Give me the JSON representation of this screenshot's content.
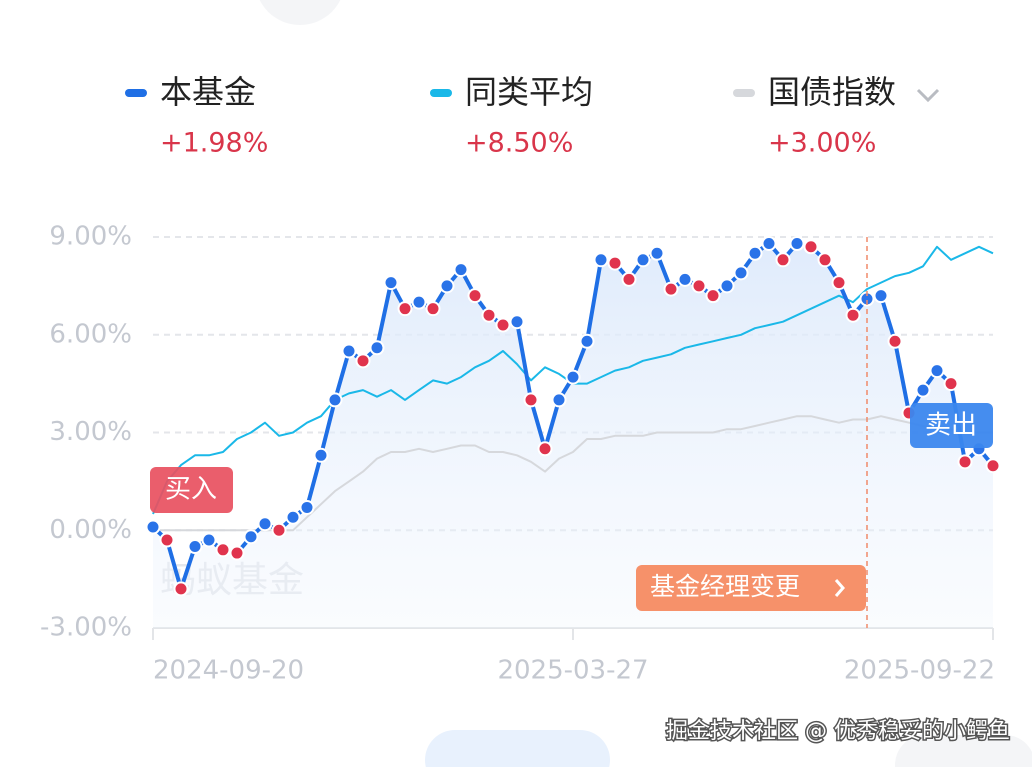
{
  "chart_data": {
    "type": "line",
    "categories": [
      "2024-09-20",
      null,
      null,
      null,
      null,
      null,
      null,
      null,
      null,
      null,
      null,
      null,
      null,
      null,
      null,
      null,
      null,
      null,
      null,
      null,
      null,
      null,
      null,
      null,
      null,
      null,
      null,
      null,
      null,
      null,
      "2025-03-27",
      null,
      null,
      null,
      null,
      null,
      null,
      null,
      null,
      null,
      null,
      null,
      null,
      null,
      null,
      null,
      null,
      null,
      null,
      null,
      null,
      null,
      null,
      null,
      null,
      null,
      null,
      null,
      null,
      null,
      "2025-09-22"
    ],
    "series": [
      {
        "name": "本基金",
        "color": "#1f6fe5",
        "total": 1.98,
        "total_label": "+1.98%",
        "values": [
          0.1,
          -0.3,
          -1.8,
          -0.5,
          -0.3,
          -0.6,
          -0.7,
          -0.2,
          0.2,
          0.0,
          0.4,
          0.7,
          2.3,
          4.0,
          5.5,
          5.2,
          5.6,
          7.6,
          6.8,
          7.0,
          6.8,
          7.5,
          8.0,
          7.2,
          6.6,
          6.3,
          6.4,
          4.0,
          2.5,
          4.0,
          4.7,
          5.8,
          8.3,
          8.2,
          7.7,
          8.3,
          8.5,
          7.4,
          7.7,
          7.5,
          7.2,
          7.5,
          7.9,
          8.5,
          8.8,
          8.3,
          8.8,
          8.7,
          8.3,
          7.6,
          6.6,
          7.1,
          7.2,
          5.8,
          3.6,
          4.3,
          4.9,
          4.5,
          2.1,
          2.5,
          1.98
        ]
      },
      {
        "name": "同类平均",
        "color": "#1ab8e8",
        "total": 8.5,
        "total_label": "+8.50%",
        "values": [
          0.5,
          1.5,
          2.0,
          2.3,
          2.3,
          2.4,
          2.8,
          3.0,
          3.3,
          2.9,
          3.0,
          3.3,
          3.5,
          4.0,
          4.2,
          4.3,
          4.1,
          4.3,
          4.0,
          4.3,
          4.6,
          4.5,
          4.7,
          5.0,
          5.2,
          5.5,
          5.1,
          4.6,
          5.0,
          4.8,
          4.5,
          4.5,
          4.7,
          4.9,
          5.0,
          5.2,
          5.3,
          5.4,
          5.6,
          5.7,
          5.8,
          5.9,
          6.0,
          6.2,
          6.3,
          6.4,
          6.6,
          6.8,
          7.0,
          7.2,
          7.0,
          7.4,
          7.6,
          7.8,
          7.9,
          8.1,
          8.7,
          8.3,
          8.5,
          8.7,
          8.5
        ]
      },
      {
        "name": "国债指数",
        "color": "#d6d8dc",
        "total": 3.0,
        "total_label": "+3.00%",
        "values": [
          0.0,
          0.0,
          0.0,
          0.0,
          0.0,
          0.0,
          0.0,
          0.0,
          0.0,
          0.0,
          0.0,
          0.4,
          0.8,
          1.2,
          1.5,
          1.8,
          2.2,
          2.4,
          2.4,
          2.5,
          2.4,
          2.5,
          2.6,
          2.6,
          2.4,
          2.4,
          2.3,
          2.1,
          1.8,
          2.2,
          2.4,
          2.8,
          2.8,
          2.9,
          2.9,
          2.9,
          3.0,
          3.0,
          3.0,
          3.0,
          3.0,
          3.1,
          3.1,
          3.2,
          3.3,
          3.4,
          3.5,
          3.5,
          3.4,
          3.3,
          3.4,
          3.4,
          3.5,
          3.4,
          3.3,
          3.2,
          3.1,
          3.1,
          3.0,
          3.0,
          3.0
        ]
      }
    ],
    "marker_colors": {
      "up": "#2a73e8",
      "down": "#e0344d"
    },
    "ylim": [
      -3,
      9
    ],
    "yticks": [
      {
        "value": 9,
        "label": "9.00%"
      },
      {
        "value": 6,
        "label": "6.00%"
      },
      {
        "value": 3,
        "label": "3.00%"
      },
      {
        "value": 0,
        "label": "0.00%"
      },
      {
        "value": -3,
        "label": "-3.00%"
      }
    ],
    "grid": true,
    "annotations": [
      {
        "text": "买入",
        "index": 0,
        "color": "#e8505f"
      },
      {
        "text": "卖出",
        "index": 54,
        "color": "#3b87ee"
      },
      {
        "text": "基金经理变更",
        "index": 51,
        "color": "#f6916a"
      }
    ],
    "watermark": "蚂蚁基金",
    "footer": "掘金技术社区 @ 优秀稳妥的小鳄鱼"
  }
}
